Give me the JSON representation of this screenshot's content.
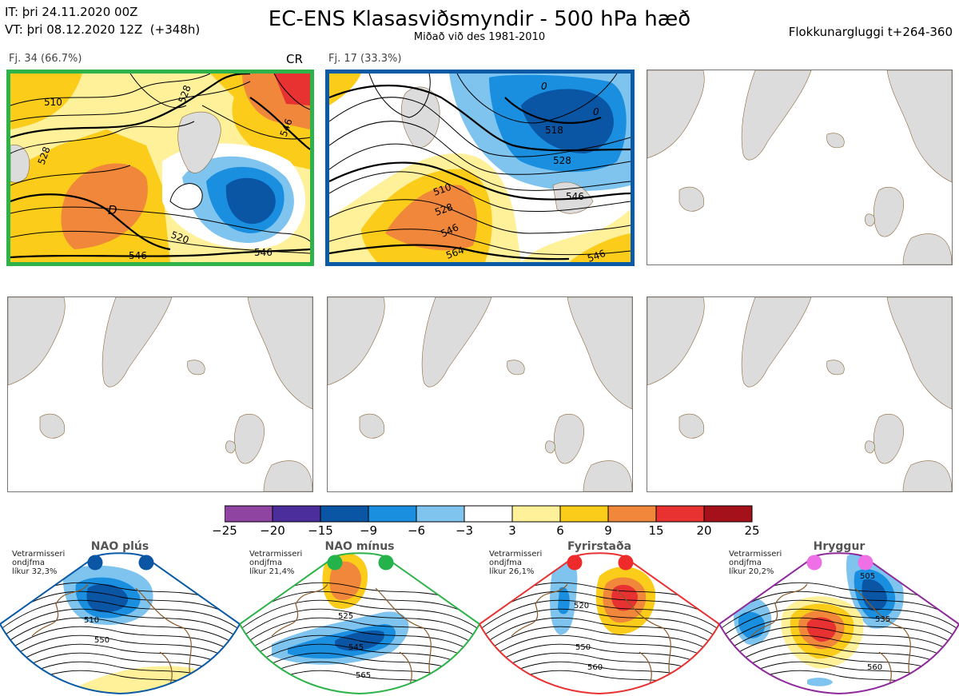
{
  "header": {
    "it_line": "IT: þri 24.11.2020 00Z",
    "vt_line": "VT: þri 08.12.2020 12Z  (+348h)",
    "title": "EC-ENS Klasasviðsmyndir - 500 hPa hæð",
    "subtitle": "Miðað við des 1981-2010",
    "window": "Flokkunargluggi t+264-360"
  },
  "panels": [
    {
      "label": "Fj. 34 (66.7%)",
      "tag": "CR",
      "border_color": "#2db34a",
      "contours": [
        "510",
        "528",
        "528",
        "520",
        "546",
        "546",
        "546",
        "D"
      ]
    },
    {
      "label": "Fj. 17 (33.3%)",
      "tag": "",
      "border_color": "#0b5aa6",
      "contours": [
        "0",
        "0",
        "518",
        "528",
        "546",
        "510",
        "528",
        "546",
        "564",
        "546"
      ]
    }
  ],
  "colorbar": {
    "colors": [
      "#8e44a0",
      "#4b2e9b",
      "#0b55a5",
      "#1a8fe0",
      "#7ec4ef",
      "#ffffff",
      "#fff09a",
      "#fccc1b",
      "#f0873a",
      "#e83232",
      "#a5111a"
    ],
    "labels": [
      "−25",
      "−20",
      "−15",
      "−9",
      "−6",
      "−3",
      "3",
      "6",
      "9",
      "15",
      "20",
      "25"
    ]
  },
  "regimes": [
    {
      "name": "NAO plús",
      "note": [
        "Vetrarmisseri",
        "ondjfma",
        "líkur 32,3%"
      ],
      "border_color": "#0b5aa6",
      "dot_color": "#0b55a5",
      "contours": [
        "510",
        "550"
      ]
    },
    {
      "name": "NAO mínus",
      "note": [
        "Vetrarmisseri",
        "ondjfma",
        "líkur 21,4%"
      ],
      "border_color": "#2db34a",
      "dot_color": "#24b24a",
      "contours": [
        "525",
        "545",
        "565"
      ]
    },
    {
      "name": "Fyrirstaða",
      "note": [
        "Vetrarmisseri",
        "ondjfma",
        "líkur 26,1%"
      ],
      "border_color": "#e83232",
      "dot_color": "#ee2a2a",
      "contours": [
        "520",
        "550",
        "560"
      ]
    },
    {
      "name": "Hryggur",
      "note": [
        "Vetrarmisseri",
        "ondjfma",
        "líkur 20,2%"
      ],
      "border_color": "#8e2a9a",
      "dot_color": "#ef6fe6",
      "contours": [
        "505",
        "535",
        "560"
      ]
    }
  ]
}
